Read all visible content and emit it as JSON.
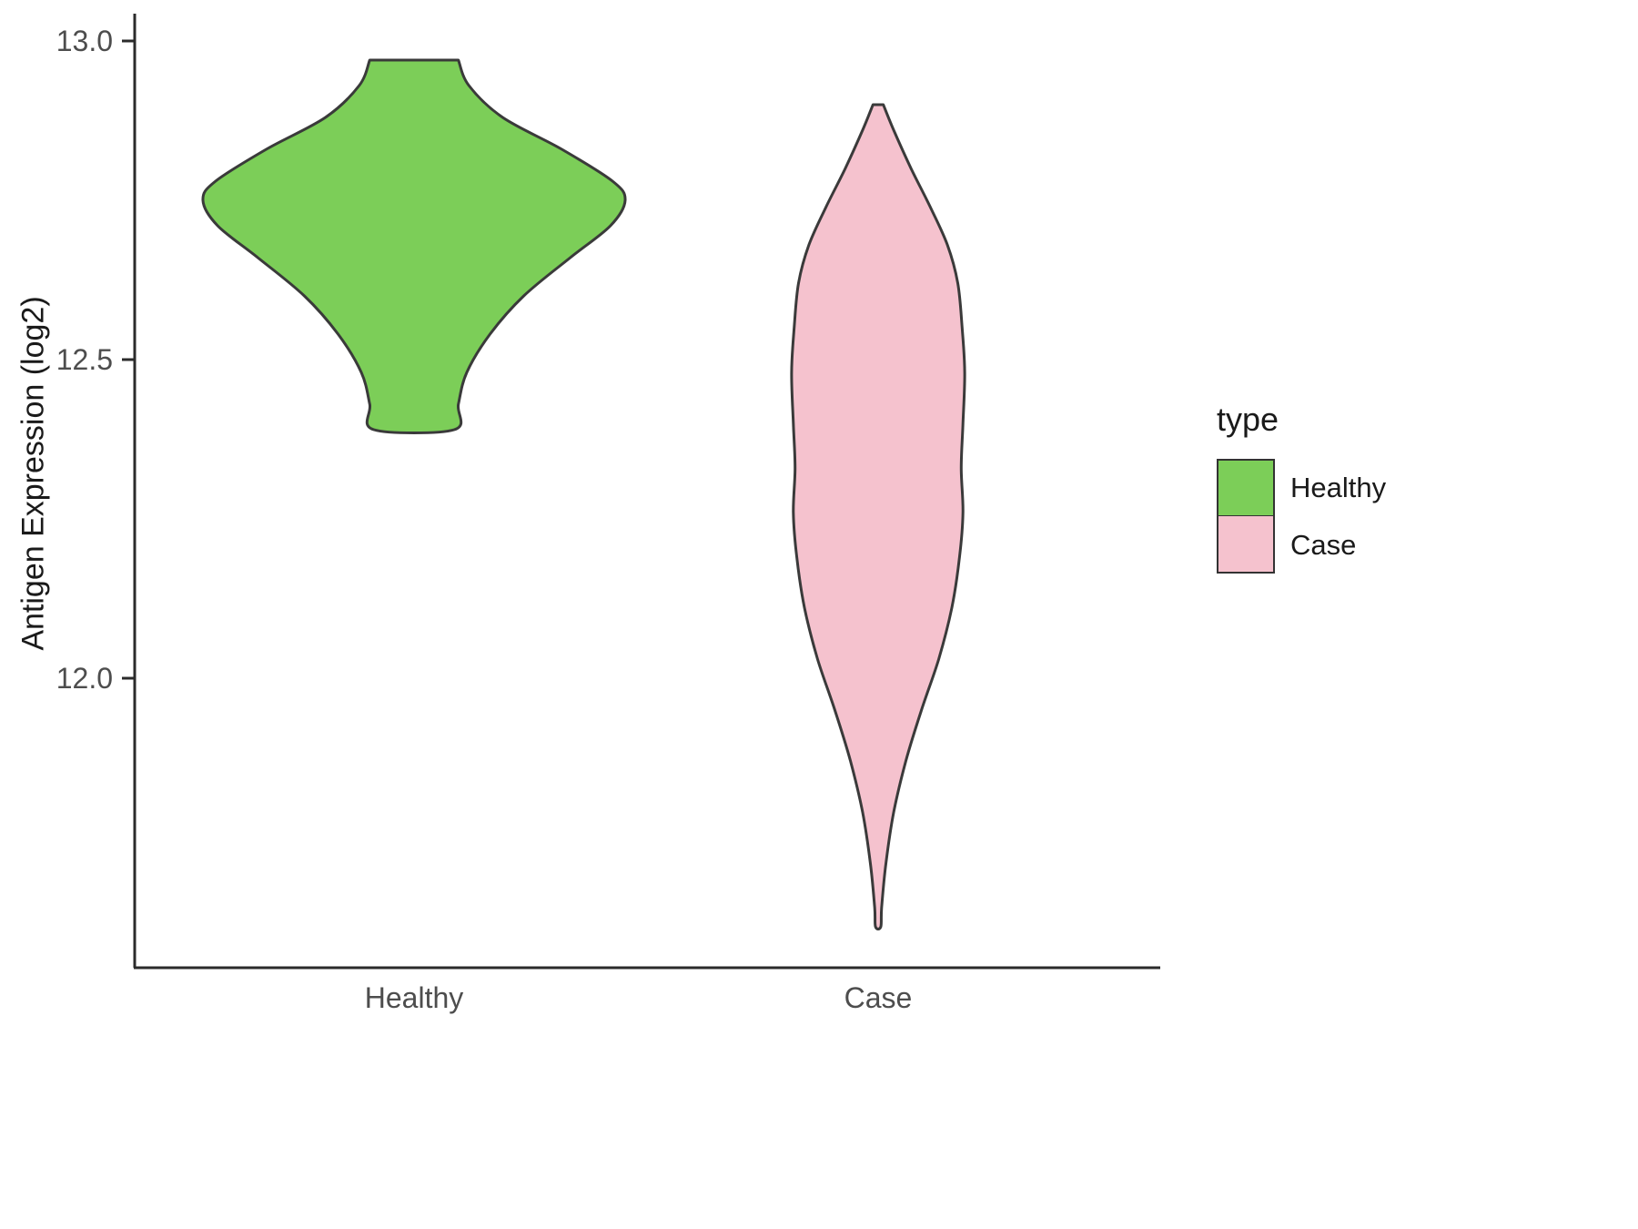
{
  "chart_data": {
    "type": "violin",
    "title": "",
    "xlabel": "",
    "ylabel": "Antigen Expression (log2)",
    "categories": [
      "Healthy",
      "Case"
    ],
    "y_ticks": [
      "13.0",
      "12.5",
      "12.0"
    ],
    "ylim_shown": [
      11.55,
      13.02
    ],
    "grid": "off",
    "legend": {
      "title": "type",
      "position": "right",
      "entries": [
        {
          "label": "Healthy",
          "color": "#7cce58"
        },
        {
          "label": "Case",
          "color": "#f5c2ce"
        }
      ]
    },
    "colors": {
      "axis": "#2b2b2b",
      "tick_text": "#4d4d4d",
      "violin_outline": "#3a3a3a",
      "background": "#ffffff"
    },
    "series": [
      {
        "name": "Healthy",
        "color": "#7cce58",
        "center_index": 0,
        "max_halfwidth_rel": 1.0,
        "value_range": [
          12.39,
          12.97
        ],
        "profile": [
          [
            12.97,
            0.21
          ],
          [
            12.93,
            0.26
          ],
          [
            12.88,
            0.42
          ],
          [
            12.83,
            0.7
          ],
          [
            12.78,
            0.94
          ],
          [
            12.75,
            1.0
          ],
          [
            12.71,
            0.93
          ],
          [
            12.66,
            0.74
          ],
          [
            12.6,
            0.52
          ],
          [
            12.54,
            0.36
          ],
          [
            12.48,
            0.25
          ],
          [
            12.43,
            0.21
          ],
          [
            12.39,
            0.19
          ]
        ]
      },
      {
        "name": "Case",
        "color": "#f5c2ce",
        "center_index": 1,
        "max_halfwidth_rel": 0.41,
        "value_range": [
          11.61,
          12.9
        ],
        "profile": [
          [
            12.9,
            0.06
          ],
          [
            12.86,
            0.18
          ],
          [
            12.8,
            0.38
          ],
          [
            12.74,
            0.6
          ],
          [
            12.68,
            0.8
          ],
          [
            12.62,
            0.92
          ],
          [
            12.55,
            0.97
          ],
          [
            12.48,
            1.0
          ],
          [
            12.4,
            0.98
          ],
          [
            12.33,
            0.96
          ],
          [
            12.26,
            0.98
          ],
          [
            12.19,
            0.94
          ],
          [
            12.11,
            0.85
          ],
          [
            12.03,
            0.7
          ],
          [
            11.95,
            0.5
          ],
          [
            11.87,
            0.32
          ],
          [
            11.79,
            0.18
          ],
          [
            11.71,
            0.09
          ],
          [
            11.64,
            0.04
          ],
          [
            11.61,
            0.03
          ]
        ]
      }
    ]
  }
}
